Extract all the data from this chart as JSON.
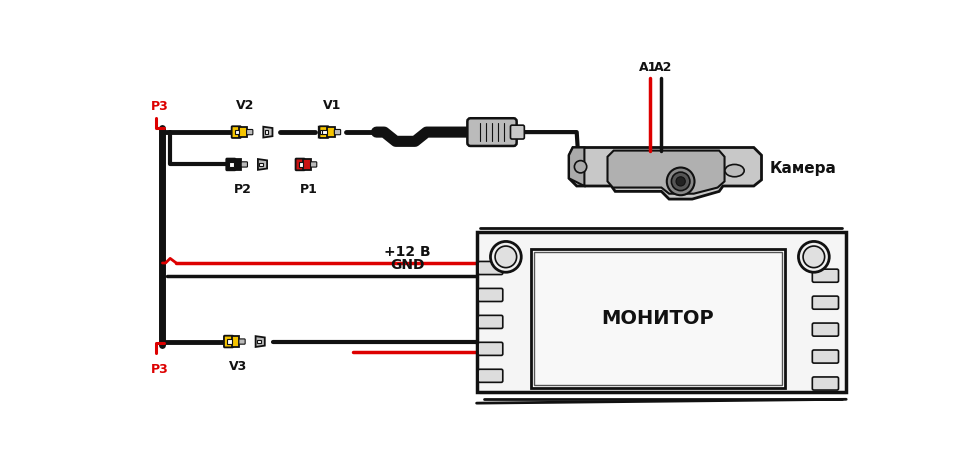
{
  "bg_color": "#ffffff",
  "lc": "#111111",
  "rc": "#dd0000",
  "yc": "#f5c400",
  "gc": "#aaaaaa",
  "figsize": [
    9.6,
    4.72
  ],
  "dpi": 100,
  "labels": {
    "P3_top": "P3",
    "P3_bot": "P3",
    "V1": "V1",
    "V2": "V2",
    "V3": "V3",
    "P1": "P1",
    "P2": "P2",
    "A1": "A1",
    "A2": "A2",
    "camera": "Камера",
    "monitor": "МОНИТОР",
    "plus12v": "+12 В",
    "gnd": "GND"
  }
}
